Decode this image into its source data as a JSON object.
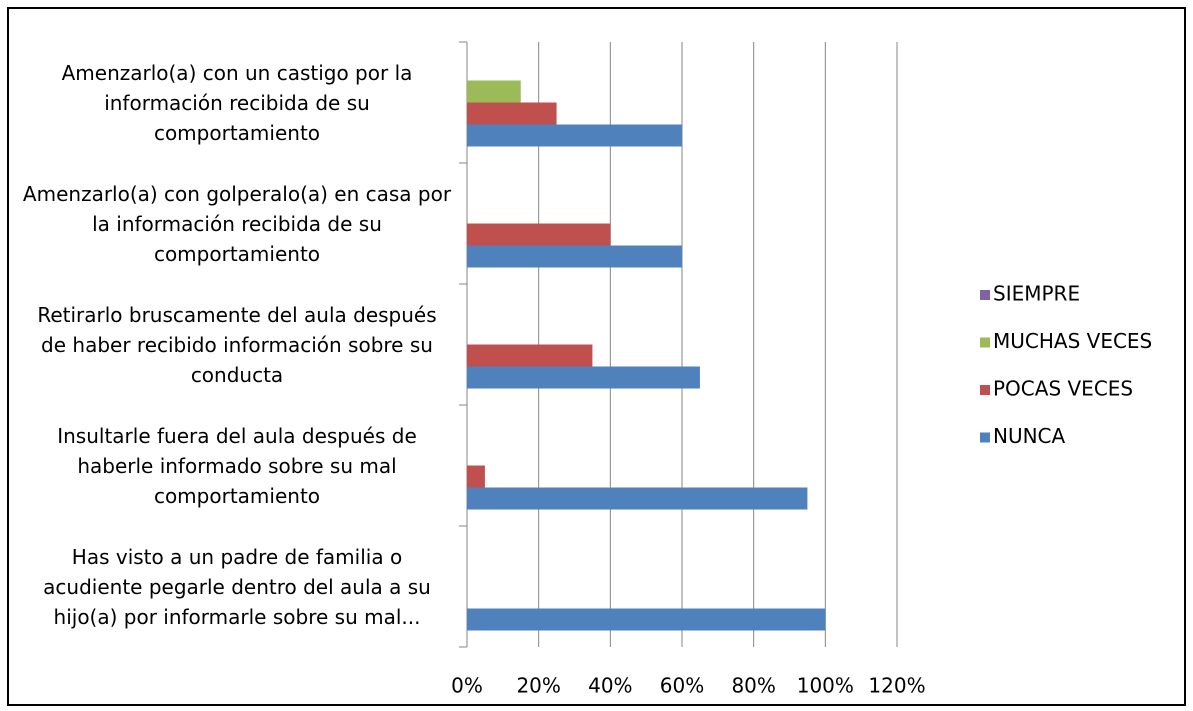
{
  "chart_data": {
    "type": "hbar",
    "categories": [
      "Amenzarlo(a) con un castigo por la información recibida de su comportamiento",
      "Amenzarlo(a) con golperalo(a) en casa por la información recibida de su comportamiento",
      "Retirarlo bruscamente del aula después de haber recibido información sobre su conducta",
      "Insultarle fuera del aula después de haberle informado sobre su mal comportamiento",
      "Has visto a un padre de familia o acudiente pegarle dentro del aula a su hijo(a) por informarle sobre su mal..."
    ],
    "series": [
      {
        "name": "NUNCA",
        "color": "#4f81bd",
        "values": [
          60,
          60,
          65,
          95,
          100
        ]
      },
      {
        "name": "POCAS VECES",
        "color": "#c0504d",
        "values": [
          25,
          40,
          35,
          5,
          0
        ]
      },
      {
        "name": "MUCHAS VECES",
        "color": "#9bbb59",
        "values": [
          15,
          0,
          0,
          0,
          0
        ]
      },
      {
        "name": "SIEMPRE",
        "color": "#8064a2",
        "values": [
          0,
          0,
          0,
          0,
          0
        ]
      }
    ],
    "xlim": [
      0,
      120
    ],
    "xticks": [
      {
        "value": 0,
        "label": "0%"
      },
      {
        "value": 20,
        "label": "20%"
      },
      {
        "value": 40,
        "label": "40%"
      },
      {
        "value": 60,
        "label": "60%"
      },
      {
        "value": 80,
        "label": "80%"
      },
      {
        "value": 100,
        "label": "100%"
      },
      {
        "value": 120,
        "label": "120%"
      }
    ],
    "grid": true,
    "legend": "right"
  }
}
